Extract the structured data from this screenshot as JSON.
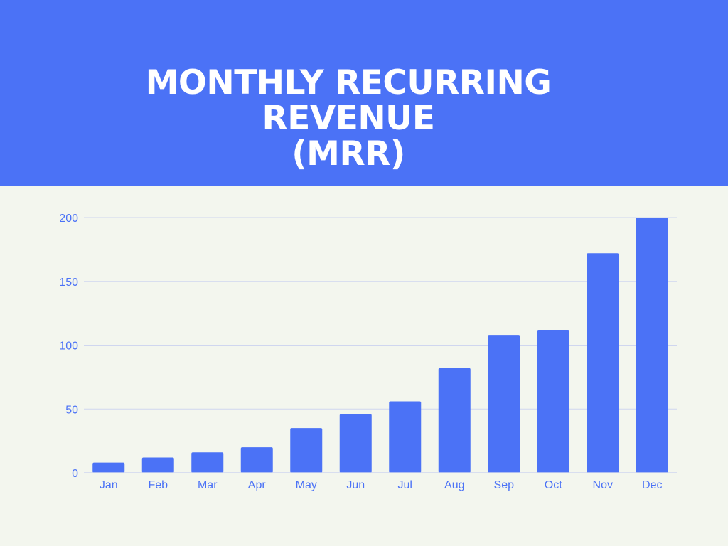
{
  "header": {
    "title": "MONTHLY RECURRING  REVENUE\n(MRR)"
  },
  "colors": {
    "header_bg": "#4b72f6",
    "bar": "#4b72f6",
    "gridline": "#cfd6ef",
    "text": "#4b72f6",
    "page_bg": "#f3f6ee"
  },
  "chart_data": {
    "type": "bar",
    "title": "MONTHLY RECURRING  REVENUE (MRR)",
    "xlabel": "",
    "ylabel": "",
    "categories": [
      "Jan",
      "Feb",
      "Mar",
      "Apr",
      "May",
      "Jun",
      "Jul",
      "Aug",
      "Sep",
      "Oct",
      "Nov",
      "Dec"
    ],
    "values": [
      8,
      12,
      16,
      20,
      35,
      46,
      56,
      82,
      108,
      112,
      172,
      200
    ],
    "ylim": [
      0,
      200
    ],
    "yticks": [
      0,
      50,
      100,
      150,
      200
    ],
    "ytick_labels": [
      "0",
      "50",
      "100",
      "150",
      "200"
    ],
    "grid": true,
    "legend": "none"
  }
}
